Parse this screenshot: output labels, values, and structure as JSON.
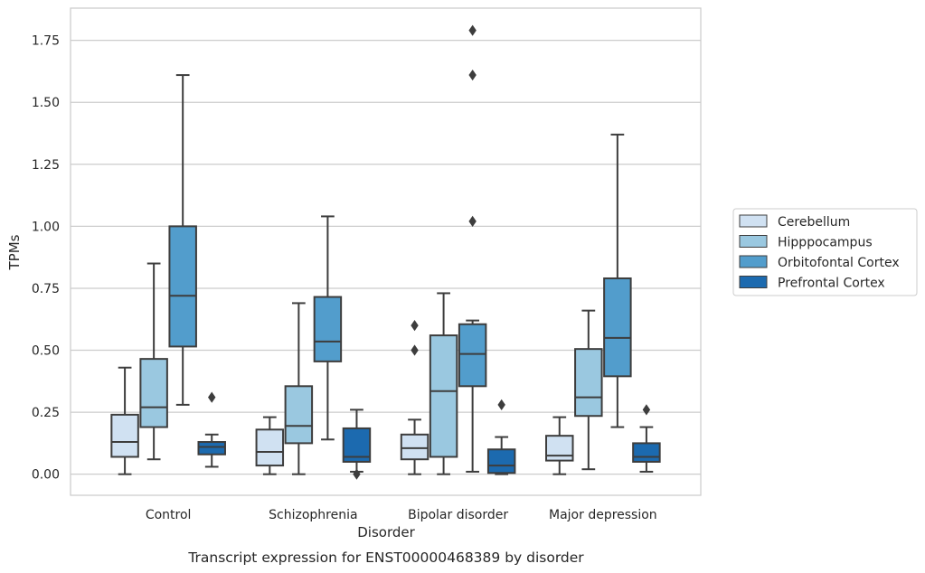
{
  "chart_data": {
    "type": "box",
    "caption": "Transcript expression for ENST00000468389 by disorder",
    "xlabel": "Disorder",
    "ylabel": "TPMs",
    "ylim": [
      -0.085,
      1.88
    ],
    "yticks": [
      0.0,
      0.25,
      0.5,
      0.75,
      1.0,
      1.25,
      1.5,
      1.75
    ],
    "ytick_labels": [
      "0.00",
      "0.25",
      "0.50",
      "0.75",
      "1.00",
      "1.25",
      "1.50",
      "1.75"
    ],
    "grid": true,
    "legend_position": "right",
    "categories": [
      "Control",
      "Schizophrenia",
      "Bipolar disorder",
      "Major depression"
    ],
    "series": [
      {
        "name": "Cerebellum",
        "color": "#d0e1f2",
        "boxes": [
          {
            "min": 0.0,
            "q1": 0.07,
            "median": 0.13,
            "q3": 0.24,
            "max": 0.43,
            "outliers": []
          },
          {
            "min": 0.0,
            "q1": 0.035,
            "median": 0.09,
            "q3": 0.18,
            "max": 0.23,
            "outliers": []
          },
          {
            "min": 0.0,
            "q1": 0.06,
            "median": 0.105,
            "q3": 0.16,
            "max": 0.22,
            "outliers": [
              0.5,
              0.6
            ]
          },
          {
            "min": 0.0,
            "q1": 0.055,
            "median": 0.075,
            "q3": 0.155,
            "max": 0.23,
            "outliers": []
          }
        ]
      },
      {
        "name": "Hipppocampus",
        "color": "#9ac8e0",
        "boxes": [
          {
            "min": 0.06,
            "q1": 0.19,
            "median": 0.27,
            "q3": 0.465,
            "max": 0.85,
            "outliers": []
          },
          {
            "min": 0.0,
            "q1": 0.125,
            "median": 0.195,
            "q3": 0.355,
            "max": 0.69,
            "outliers": []
          },
          {
            "min": 0.0,
            "q1": 0.07,
            "median": 0.335,
            "q3": 0.56,
            "max": 0.73,
            "outliers": []
          },
          {
            "min": 0.02,
            "q1": 0.235,
            "median": 0.31,
            "q3": 0.505,
            "max": 0.66,
            "outliers": []
          }
        ]
      },
      {
        "name": "Orbitofontal Cortex",
        "color": "#529dcc",
        "boxes": [
          {
            "min": 0.28,
            "q1": 0.515,
            "median": 0.72,
            "q3": 1.0,
            "max": 1.61,
            "outliers": []
          },
          {
            "min": 0.14,
            "q1": 0.455,
            "median": 0.535,
            "q3": 0.715,
            "max": 1.04,
            "outliers": []
          },
          {
            "min": 0.01,
            "q1": 0.355,
            "median": 0.485,
            "q3": 0.605,
            "max": 0.62,
            "outliers": [
              1.02,
              1.61,
              1.79
            ]
          },
          {
            "min": 0.19,
            "q1": 0.395,
            "median": 0.55,
            "q3": 0.79,
            "max": 1.37,
            "outliers": []
          }
        ]
      },
      {
        "name": "Prefrontal Cortex",
        "color": "#1c6aaf",
        "boxes": [
          {
            "min": 0.03,
            "q1": 0.08,
            "median": 0.11,
            "q3": 0.13,
            "max": 0.16,
            "outliers": [
              0.31
            ]
          },
          {
            "min": 0.01,
            "q1": 0.05,
            "median": 0.07,
            "q3": 0.185,
            "max": 0.26,
            "outliers": [
              0.0
            ]
          },
          {
            "min": 0.0,
            "q1": 0.005,
            "median": 0.035,
            "q3": 0.1,
            "max": 0.15,
            "outliers": [
              0.28
            ]
          },
          {
            "min": 0.01,
            "q1": 0.05,
            "median": 0.07,
            "q3": 0.125,
            "max": 0.19,
            "outliers": [
              0.26
            ]
          }
        ]
      }
    ]
  }
}
